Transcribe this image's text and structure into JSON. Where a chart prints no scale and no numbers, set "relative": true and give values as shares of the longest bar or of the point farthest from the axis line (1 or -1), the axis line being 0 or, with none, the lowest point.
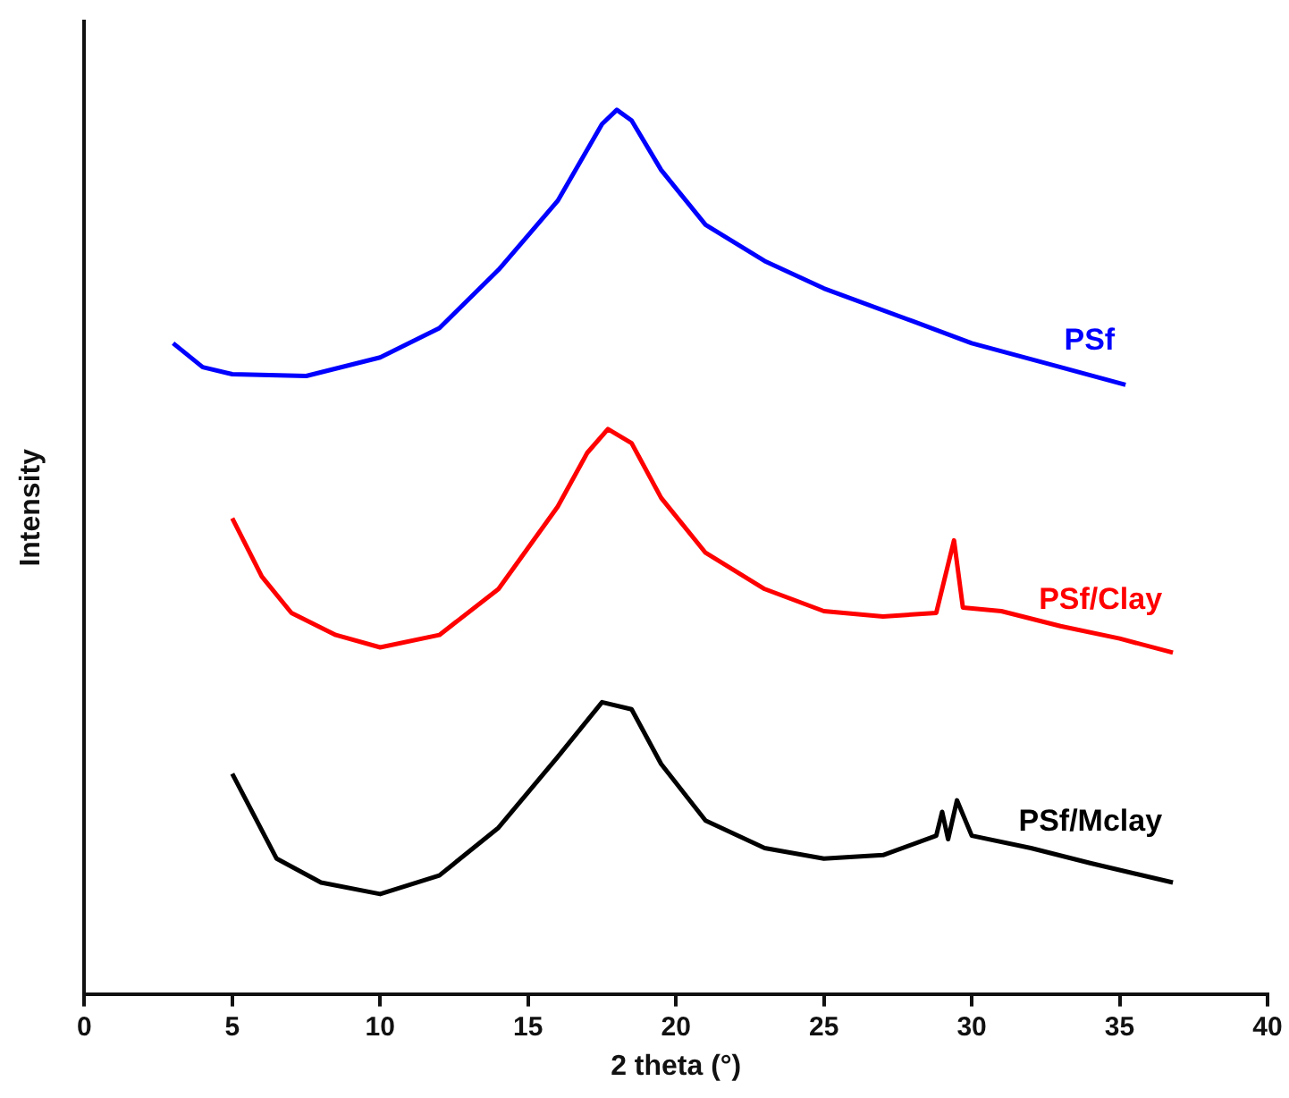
{
  "chart_data": {
    "type": "line",
    "relative": true,
    "xlabel": "2 theta (°)",
    "ylabel": "Intensity",
    "xlim": [
      0,
      40
    ],
    "xticks": [
      0,
      5,
      10,
      15,
      20,
      25,
      30,
      35,
      40
    ],
    "grid": false,
    "legend": false,
    "series": [
      {
        "name": "PSf",
        "color": "#0000ff",
        "x": [
          3,
          4,
          5,
          7.5,
          10,
          12,
          14,
          16,
          17.5,
          18,
          18.5,
          19.5,
          21,
          23,
          25,
          28,
          30,
          33,
          35.2
        ],
        "values": [
          0.736,
          0.709,
          0.701,
          0.699,
          0.72,
          0.753,
          0.819,
          0.897,
          0.984,
          1,
          0.988,
          0.932,
          0.87,
          0.829,
          0.798,
          0.761,
          0.736,
          0.709,
          0.689
        ]
      },
      {
        "name": "PSf/Clay",
        "color": "#ff0000",
        "x": [
          5,
          6,
          7,
          8.5,
          10,
          12,
          14,
          16,
          17,
          17.7,
          18.5,
          19.5,
          21,
          23,
          25,
          27,
          28.8,
          29.4,
          29.7,
          31,
          33,
          35,
          36.8
        ],
        "values": [
          0.538,
          0.472,
          0.431,
          0.406,
          0.392,
          0.406,
          0.458,
          0.551,
          0.612,
          0.639,
          0.623,
          0.561,
          0.499,
          0.458,
          0.433,
          0.427,
          0.431,
          0.513,
          0.437,
          0.433,
          0.416,
          0.402,
          0.386
        ]
      },
      {
        "name": "PSf/Mclay",
        "color": "#000000",
        "x": [
          5,
          6.5,
          8,
          10,
          12,
          14,
          16,
          17.5,
          18.5,
          19.5,
          21,
          23,
          25,
          27,
          28.8,
          29,
          29.2,
          29.5,
          30,
          32,
          34,
          36.8
        ],
        "values": [
          0.249,
          0.153,
          0.126,
          0.113,
          0.134,
          0.188,
          0.268,
          0.33,
          0.322,
          0.26,
          0.196,
          0.165,
          0.153,
          0.157,
          0.179,
          0.206,
          0.175,
          0.219,
          0.179,
          0.165,
          0.148,
          0.126
        ]
      }
    ]
  }
}
